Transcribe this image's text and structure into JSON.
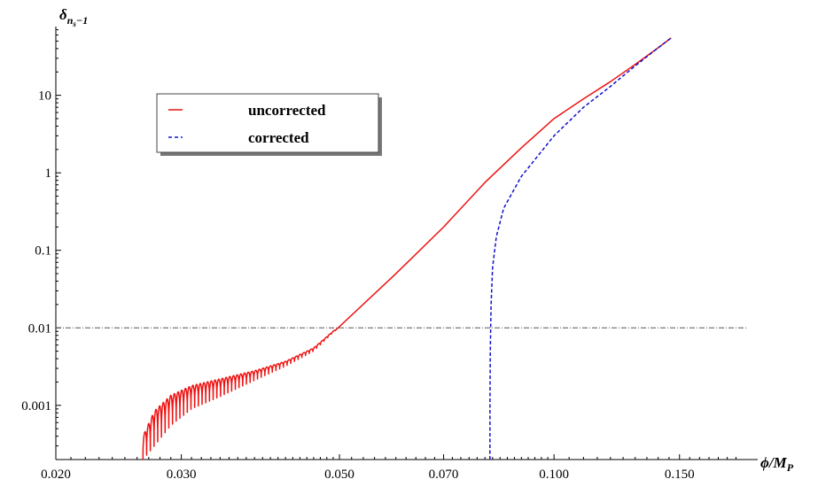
{
  "chart_data": {
    "type": "line",
    "title": "",
    "xlabel": {
      "main": "ϕ/M",
      "sub": "P"
    },
    "ylabel": {
      "main": "δ",
      "sub": "n",
      "subsub": "s",
      "suffix": "−1"
    },
    "x_scale": "log",
    "y_scale": "log",
    "xlim": [
      0.02,
      0.185
    ],
    "ylim": [
      0.0002,
      75
    ],
    "x_ticks": [
      {
        "value": 0.02,
        "label": "0.020"
      },
      {
        "value": 0.03,
        "label": "0.030"
      },
      {
        "value": 0.05,
        "label": "0.050"
      },
      {
        "value": 0.07,
        "label": "0.070"
      },
      {
        "value": 0.1,
        "label": "0.100"
      },
      {
        "value": 0.15,
        "label": "0.150"
      }
    ],
    "y_ticks": [
      {
        "value": 0.001,
        "label": "0.001"
      },
      {
        "value": 0.01,
        "label": "0.01"
      },
      {
        "value": 0.1,
        "label": "0.1"
      },
      {
        "value": 1,
        "label": "1"
      },
      {
        "value": 10,
        "label": "10"
      }
    ],
    "reference_line": {
      "y": 0.01,
      "style": "dash-dot",
      "color": "#555555"
    },
    "legend": {
      "placement": "upper-left",
      "entries": [
        {
          "label": "uncorrected",
          "color": "#ee1111",
          "style": "solid"
        },
        {
          "label": "corrected",
          "color": "#1111cc",
          "style": "dashed"
        }
      ]
    },
    "series": [
      {
        "name": "uncorrected",
        "color": "#ee1111",
        "style": "solid",
        "oscillation": {
          "x_start": 0.0265,
          "x_end": 0.0493,
          "cycles": 52,
          "envelope_upper": [
            [
              0.0265,
              0.0004
            ],
            [
              0.0275,
              0.00085
            ],
            [
              0.029,
              0.00135
            ],
            [
              0.031,
              0.0018
            ],
            [
              0.034,
              0.0022
            ],
            [
              0.038,
              0.0028
            ],
            [
              0.042,
              0.0037
            ],
            [
              0.046,
              0.0055
            ],
            [
              0.0493,
              0.0095
            ]
          ],
          "envelope_lower": [
            [
              0.0265,
              0.0002
            ],
            [
              0.0275,
              0.0003
            ],
            [
              0.029,
              0.00055
            ],
            [
              0.031,
              0.0009
            ],
            [
              0.034,
              0.0013
            ],
            [
              0.038,
              0.0021
            ],
            [
              0.042,
              0.0032
            ],
            [
              0.046,
              0.005
            ],
            [
              0.0493,
              0.0092
            ]
          ]
        },
        "points": [
          [
            0.0493,
            0.0095
          ],
          [
            0.06,
            0.05
          ],
          [
            0.07,
            0.2
          ],
          [
            0.08,
            0.75
          ],
          [
            0.09,
            2.1
          ],
          [
            0.1,
            5
          ],
          [
            0.11,
            9
          ],
          [
            0.12,
            15
          ],
          [
            0.13,
            25
          ],
          [
            0.14,
            41
          ],
          [
            0.146,
            55
          ]
        ]
      },
      {
        "name": "corrected",
        "color": "#1111cc",
        "style": "dashed",
        "points": [
          [
            0.0813,
            0.0002
          ],
          [
            0.0813,
            0.001
          ],
          [
            0.0814,
            0.005
          ],
          [
            0.0816,
            0.02
          ],
          [
            0.082,
            0.06
          ],
          [
            0.083,
            0.15
          ],
          [
            0.085,
            0.35
          ],
          [
            0.09,
            0.9
          ],
          [
            0.1,
            3.0
          ],
          [
            0.11,
            7
          ],
          [
            0.12,
            13
          ],
          [
            0.13,
            24
          ],
          [
            0.14,
            41
          ],
          [
            0.146,
            55
          ]
        ]
      }
    ]
  }
}
